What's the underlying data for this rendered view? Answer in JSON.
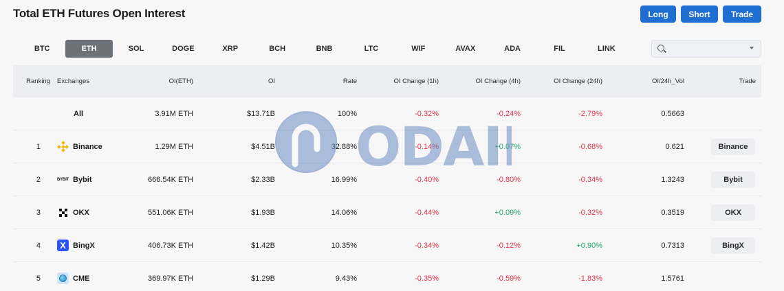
{
  "page": {
    "title": "Total ETH Futures Open Interest"
  },
  "actions": {
    "long_label": "Long",
    "short_label": "Short",
    "trade_label": "Trade"
  },
  "coins": [
    "BTC",
    "ETH",
    "SOL",
    "DOGE",
    "XRP",
    "BCH",
    "BNB",
    "LTC",
    "WIF",
    "AVAX",
    "ADA",
    "FIL",
    "LINK"
  ],
  "active_coin": "ETH",
  "search": {
    "placeholder": "",
    "icon": "search-icon"
  },
  "table": {
    "headers": {
      "ranking": "Ranking",
      "exchanges": "Exchanges",
      "oi_eth": "OI(ETH)",
      "oi": "OI",
      "rate": "Rate",
      "ch1h": "OI Change (1h)",
      "ch4h": "OI Change (4h)",
      "ch24h": "OI Change (24h)",
      "vol": "OI/24h_Vol",
      "trade": "Trade"
    },
    "all_row": {
      "label": "All",
      "oi_eth": "3.91M ETH",
      "oi": "$13.71B",
      "rate": "100%",
      "ch1h": "-0.32%",
      "ch4h": "-0.24%",
      "ch24h": "-2.79%",
      "vol": "0.5663"
    },
    "rows": [
      {
        "rank": "1",
        "exchange": "Binance",
        "logo": "binance-logo",
        "oi_eth": "1.29M ETH",
        "oi": "$4.51B",
        "rate": "32.88%",
        "ch1h": "-0.14%",
        "ch4h": "+0.07%",
        "ch24h": "-0.68%",
        "vol": "0.621",
        "trade": "Binance"
      },
      {
        "rank": "2",
        "exchange": "Bybit",
        "logo": "bybit-logo",
        "logo_text": "BYBIT",
        "oi_eth": "666.54K ETH",
        "oi": "$2.33B",
        "rate": "16.99%",
        "ch1h": "-0.40%",
        "ch4h": "-0.80%",
        "ch24h": "-0.34%",
        "vol": "1.3243",
        "trade": "Bybit"
      },
      {
        "rank": "3",
        "exchange": "OKX",
        "logo": "okx-logo",
        "oi_eth": "551.06K ETH",
        "oi": "$1.93B",
        "rate": "14.06%",
        "ch1h": "-0.44%",
        "ch4h": "+0.09%",
        "ch24h": "-0.32%",
        "vol": "0.3519",
        "trade": "OKX"
      },
      {
        "rank": "4",
        "exchange": "BingX",
        "logo": "bingx-logo",
        "logo_text": "X",
        "oi_eth": "406.73K ETH",
        "oi": "$1.42B",
        "rate": "10.35%",
        "ch1h": "-0.34%",
        "ch4h": "-0.12%",
        "ch24h": "+0.90%",
        "vol": "0.7313",
        "trade": "BingX"
      },
      {
        "rank": "5",
        "exchange": "CME",
        "logo": "cme-logo",
        "oi_eth": "369.97K ETH",
        "oi": "$1.29B",
        "rate": "9.43%",
        "ch1h": "-0.35%",
        "ch4h": "-0.59%",
        "ch24h": "-1.83%",
        "vol": "1.5761",
        "trade": ""
      }
    ]
  },
  "watermark": {
    "text": "ODAILY"
  },
  "colors": {
    "accent": "#1f6fd2",
    "negative": "#e2334a",
    "positive": "#20a86b",
    "active_tab": "#6d7178"
  }
}
